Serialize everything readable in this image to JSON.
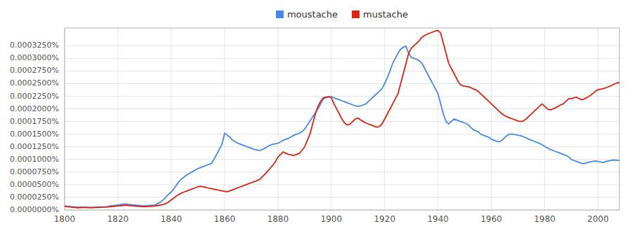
{
  "chart_data": {
    "type": "line",
    "x": [
      1800,
      1801,
      1802,
      1803,
      1804,
      1805,
      1806,
      1807,
      1808,
      1809,
      1810,
      1811,
      1812,
      1813,
      1814,
      1815,
      1816,
      1817,
      1818,
      1819,
      1820,
      1821,
      1822,
      1823,
      1824,
      1825,
      1826,
      1827,
      1828,
      1829,
      1830,
      1831,
      1832,
      1833,
      1834,
      1835,
      1836,
      1837,
      1838,
      1839,
      1840,
      1841,
      1842,
      1843,
      1844,
      1845,
      1846,
      1847,
      1848,
      1849,
      1850,
      1851,
      1852,
      1853,
      1854,
      1855,
      1856,
      1857,
      1858,
      1859,
      1860,
      1861,
      1862,
      1863,
      1864,
      1865,
      1866,
      1867,
      1868,
      1869,
      1870,
      1871,
      1872,
      1873,
      1874,
      1875,
      1876,
      1877,
      1878,
      1879,
      1880,
      1881,
      1882,
      1883,
      1884,
      1885,
      1886,
      1887,
      1888,
      1889,
      1890,
      1891,
      1892,
      1893,
      1894,
      1895,
      1896,
      1897,
      1898,
      1899,
      1900,
      1901,
      1902,
      1903,
      1904,
      1905,
      1906,
      1907,
      1908,
      1909,
      1910,
      1911,
      1912,
      1913,
      1914,
      1915,
      1916,
      1917,
      1918,
      1919,
      1920,
      1921,
      1922,
      1923,
      1924,
      1925,
      1926,
      1927,
      1928,
      1929,
      1930,
      1931,
      1932,
      1933,
      1934,
      1935,
      1936,
      1937,
      1938,
      1939,
      1940,
      1941,
      1942,
      1943,
      1944,
      1945,
      1946,
      1947,
      1948,
      1949,
      1950,
      1951,
      1952,
      1953,
      1954,
      1955,
      1956,
      1957,
      1958,
      1959,
      1960,
      1961,
      1962,
      1963,
      1964,
      1965,
      1966,
      1967,
      1968,
      1969,
      1970,
      1971,
      1972,
      1973,
      1974,
      1975,
      1976,
      1977,
      1978,
      1979,
      1980,
      1981,
      1982,
      1983,
      1984,
      1985,
      1986,
      1987,
      1988,
      1989,
      1990,
      1991,
      1992,
      1993,
      1994,
      1995,
      1996,
      1997,
      1998,
      1999,
      2000,
      2001,
      2002,
      2003,
      2004,
      2005,
      2006,
      2007,
      2008
    ],
    "series": [
      {
        "name": "moustache",
        "color": "#4488ee",
        "values": [
          8e-08,
          7.5e-08,
          7e-08,
          6.5e-08,
          6e-08,
          5.5e-08,
          6e-08,
          5.5e-08,
          5e-08,
          4.8e-08,
          4.5e-08,
          5e-08,
          5.5e-08,
          6e-08,
          5.8e-08,
          6e-08,
          6.5e-08,
          8e-08,
          8.5e-08,
          9e-08,
          1e-07,
          1.1e-07,
          1.15e-07,
          1.2e-07,
          1.1e-07,
          1.05e-07,
          1e-07,
          9.5e-08,
          9e-08,
          8.5e-08,
          8e-08,
          8.5e-08,
          9e-08,
          9.5e-08,
          1e-07,
          1.3e-07,
          1.6e-07,
          2e-07,
          2.6e-07,
          3.1e-07,
          3.6e-07,
          4.2e-07,
          5e-07,
          5.7e-07,
          6.2e-07,
          6.6e-07,
          7e-07,
          7.3e-07,
          7.6e-07,
          7.9e-07,
          8.2e-07,
          8.4e-07,
          8.6e-07,
          8.8e-07,
          9e-07,
          9.2e-07,
          1e-06,
          1.1e-06,
          1.2e-06,
          1.3e-06,
          1.52e-06,
          1.48e-06,
          1.44e-06,
          1.38e-06,
          1.35e-06,
          1.32e-06,
          1.3e-06,
          1.28e-06,
          1.26e-06,
          1.24e-06,
          1.22e-06,
          1.2e-06,
          1.19e-06,
          1.18e-06,
          1.19e-06,
          1.22e-06,
          1.25e-06,
          1.28e-06,
          1.3e-06,
          1.31e-06,
          1.32e-06,
          1.35e-06,
          1.38e-06,
          1.4e-06,
          1.42e-06,
          1.45e-06,
          1.48e-06,
          1.5e-06,
          1.52e-06,
          1.55e-06,
          1.6e-06,
          1.68e-06,
          1.76e-06,
          1.84e-06,
          1.92e-06,
          2e-06,
          2.1e-06,
          2.2e-06,
          2.22e-06,
          2.24e-06,
          2.24e-06,
          2.22e-06,
          2.2e-06,
          2.18e-06,
          2.16e-06,
          2.14e-06,
          2.12e-06,
          2.1e-06,
          2.08e-06,
          2.06e-06,
          2.05e-06,
          2.06e-06,
          2.08e-06,
          2.1e-06,
          2.15e-06,
          2.2e-06,
          2.25e-06,
          2.3e-06,
          2.35e-06,
          2.4e-06,
          2.5e-06,
          2.62e-06,
          2.75e-06,
          2.9e-06,
          3e-06,
          3.1e-06,
          3.18e-06,
          3.22e-06,
          3.24e-06,
          3.1e-06,
          3.02e-06,
          3e-06,
          2.98e-06,
          2.95e-06,
          2.9e-06,
          2.8e-06,
          2.7e-06,
          2.6e-06,
          2.5e-06,
          2.4e-06,
          2.3e-06,
          2.1e-06,
          1.9e-06,
          1.75e-06,
          1.7e-06,
          1.75e-06,
          1.8e-06,
          1.78e-06,
          1.76e-06,
          1.74e-06,
          1.72e-06,
          1.7e-06,
          1.65e-06,
          1.6e-06,
          1.57e-06,
          1.55e-06,
          1.5e-06,
          1.48e-06,
          1.46e-06,
          1.44e-06,
          1.4e-06,
          1.38e-06,
          1.36e-06,
          1.35e-06,
          1.38e-06,
          1.43e-06,
          1.48e-06,
          1.5e-06,
          1.5e-06,
          1.49e-06,
          1.48e-06,
          1.47e-06,
          1.45e-06,
          1.43e-06,
          1.4e-06,
          1.38e-06,
          1.36e-06,
          1.34e-06,
          1.32e-06,
          1.29e-06,
          1.26e-06,
          1.23e-06,
          1.2e-06,
          1.18e-06,
          1.16e-06,
          1.14e-06,
          1.12e-06,
          1.1e-06,
          1.08e-06,
          1.05e-06,
          1e-06,
          9.8e-07,
          9.6e-07,
          9.4e-07,
          9.2e-07,
          9.2e-07,
          9.4e-07,
          9.5e-07,
          9.6e-07,
          9.7e-07,
          9.6e-07,
          9.5e-07,
          9.4e-07,
          9.6e-07,
          9.7e-07,
          9.8e-07,
          9.9e-07,
          9.8e-07,
          9.8e-07
        ]
      },
      {
        "name": "mustache",
        "color": "#dd2211",
        "values": [
          7e-08,
          6.5e-08,
          6e-08,
          5.5e-08,
          5e-08,
          4.5e-08,
          4.8e-08,
          5e-08,
          5.2e-08,
          5e-08,
          4.8e-08,
          5e-08,
          5.2e-08,
          5.4e-08,
          5.6e-08,
          5.8e-08,
          6e-08,
          6.5e-08,
          7e-08,
          7.5e-08,
          8e-08,
          8.5e-08,
          9e-08,
          9.5e-08,
          9e-08,
          8.5e-08,
          8e-08,
          7.5e-08,
          7e-08,
          6.8e-08,
          6.6e-08,
          6.8e-08,
          7e-08,
          7.5e-08,
          8e-08,
          9e-08,
          1e-07,
          1.1e-07,
          1.3e-07,
          1.6e-07,
          2e-07,
          2.4e-07,
          2.8e-07,
          3.1e-07,
          3.4e-07,
          3.6e-07,
          3.8e-07,
          4e-07,
          4.2e-07,
          4.4e-07,
          4.6e-07,
          4.7e-07,
          4.6e-07,
          4.5e-07,
          4.3e-07,
          4.2e-07,
          4.1e-07,
          4e-07,
          3.9e-07,
          3.8e-07,
          3.7e-07,
          3.6e-07,
          3.8e-07,
          4e-07,
          4.2e-07,
          4.4e-07,
          4.6e-07,
          4.8e-07,
          5e-07,
          5.2e-07,
          5.4e-07,
          5.6e-07,
          5.8e-07,
          6e-07,
          6.5e-07,
          7e-07,
          7.6e-07,
          8.2e-07,
          8.8e-07,
          9.5e-07,
          1.05e-06,
          1.1e-06,
          1.15e-06,
          1.12e-06,
          1.1e-06,
          1.09e-06,
          1.08e-06,
          1.1e-06,
          1.12e-06,
          1.18e-06,
          1.25e-06,
          1.38e-06,
          1.5e-06,
          1.7e-06,
          1.9e-06,
          2.05e-06,
          2.15e-06,
          2.22e-06,
          2.23e-06,
          2.24e-06,
          2.22e-06,
          2.1e-06,
          2e-06,
          1.9e-06,
          1.8e-06,
          1.72e-06,
          1.68e-06,
          1.7e-06,
          1.75e-06,
          1.8e-06,
          1.82e-06,
          1.78e-06,
          1.75e-06,
          1.72e-06,
          1.7e-06,
          1.68e-06,
          1.66e-06,
          1.64e-06,
          1.65e-06,
          1.7e-06,
          1.8e-06,
          1.9e-06,
          2e-06,
          2.1e-06,
          2.2e-06,
          2.3e-06,
          2.5e-06,
          2.7e-06,
          2.9e-06,
          3.1e-06,
          3.2e-06,
          3.25e-06,
          3.3e-06,
          3.35e-06,
          3.42e-06,
          3.45e-06,
          3.48e-06,
          3.5e-06,
          3.52e-06,
          3.54e-06,
          3.55e-06,
          3.5e-06,
          3.3e-06,
          3.1e-06,
          2.9e-06,
          2.8e-06,
          2.7e-06,
          2.6e-06,
          2.5e-06,
          2.46e-06,
          2.45e-06,
          2.44e-06,
          2.43e-06,
          2.4e-06,
          2.38e-06,
          2.35e-06,
          2.3e-06,
          2.25e-06,
          2.2e-06,
          2.15e-06,
          2.1e-06,
          2.05e-06,
          2e-06,
          1.95e-06,
          1.9e-06,
          1.87e-06,
          1.84e-06,
          1.82e-06,
          1.8e-06,
          1.78e-06,
          1.76e-06,
          1.75e-06,
          1.76e-06,
          1.8e-06,
          1.85e-06,
          1.9e-06,
          1.95e-06,
          2e-06,
          2.05e-06,
          2.1e-06,
          2.05e-06,
          2e-06,
          1.98e-06,
          2e-06,
          2.02e-06,
          2.05e-06,
          2.08e-06,
          2.1e-06,
          2.15e-06,
          2.2e-06,
          2.2e-06,
          2.22e-06,
          2.23e-06,
          2.2e-06,
          2.18e-06,
          2.2e-06,
          2.23e-06,
          2.26e-06,
          2.3e-06,
          2.35e-06,
          2.38e-06,
          2.39e-06,
          2.4e-06,
          2.42e-06,
          2.44e-06,
          2.46e-06,
          2.49e-06,
          2.51e-06,
          2.52e-06
        ]
      }
    ],
    "xlim": [
      1800,
      2008
    ],
    "ylim": [
      0,
      3.6e-06
    ],
    "xticks": [
      1800,
      1820,
      1840,
      1860,
      1880,
      1900,
      1920,
      1940,
      1960,
      1980,
      2000
    ],
    "yticks": [
      {
        "value": 0.0,
        "label": "0.0000000%"
      },
      {
        "value": 2.5e-07,
        "label": "0.0000250%"
      },
      {
        "value": 5e-07,
        "label": "0.0000500%"
      },
      {
        "value": 7.5e-07,
        "label": "0.0000750%"
      },
      {
        "value": 1e-06,
        "label": "0.0001000%"
      },
      {
        "value": 1.25e-06,
        "label": "0.0001250%"
      },
      {
        "value": 1.5e-06,
        "label": "0.0001500%"
      },
      {
        "value": 1.75e-06,
        "label": "0.0001750%"
      },
      {
        "value": 2e-06,
        "label": "0.0002000%"
      },
      {
        "value": 2.25e-06,
        "label": "0.0002250%"
      },
      {
        "value": 2.5e-06,
        "label": "0.0002500%"
      },
      {
        "value": 2.75e-06,
        "label": "0.0002750%"
      },
      {
        "value": 3e-06,
        "label": "0.0003000%"
      },
      {
        "value": 3.25e-06,
        "label": "0.0003250%"
      }
    ],
    "grid": true,
    "legend": "top"
  }
}
